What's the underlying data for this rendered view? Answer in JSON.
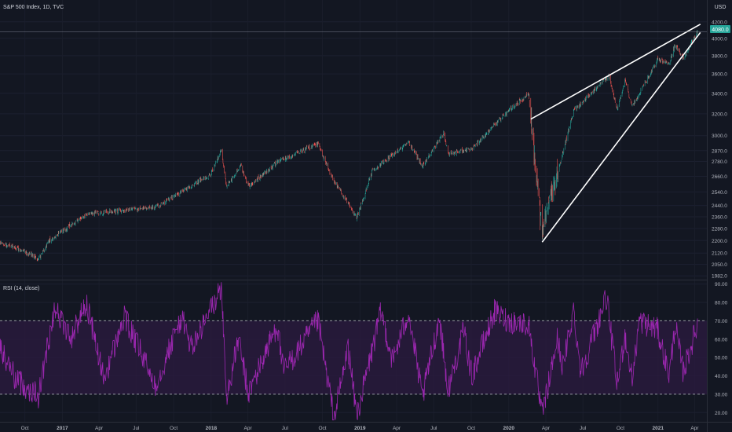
{
  "header": {
    "symbol_title": "S&P 500 Index, 1D, TVC",
    "currency": "USD",
    "current_price": "4080.0"
  },
  "rsi_pane": {
    "label": "RSI (14, close)"
  },
  "colors": {
    "background": "#131722",
    "up_candle": "#26a69a",
    "down_candle": "#ef5350",
    "rsi_line": "#9c27b0",
    "rsi_band_fill": "#2a1a3e",
    "trendline": "#ffffff",
    "price_badge": "#26a69a"
  },
  "chart_data": [
    {
      "type": "candlestick",
      "title": "S&P 500 Index, 1D, TVC",
      "x_ticks": [
        "Oct",
        "2017",
        "Apr",
        "Jul",
        "Oct",
        "2018",
        "Apr",
        "Jul",
        "Oct",
        "2019",
        "Apr",
        "Jul",
        "Oct",
        "2020",
        "Apr",
        "Jul",
        "Oct",
        "2021",
        "Apr"
      ],
      "x_tick_dates": [
        "2016-10-01",
        "2017-01-01",
        "2017-04-01",
        "2017-07-01",
        "2017-10-01",
        "2018-01-01",
        "2018-04-01",
        "2018-07-01",
        "2018-10-01",
        "2019-01-01",
        "2019-04-01",
        "2019-07-01",
        "2019-10-01",
        "2020-01-01",
        "2020-04-01",
        "2020-07-01",
        "2020-10-01",
        "2021-01-01",
        "2021-04-01"
      ],
      "y_scale": "log",
      "y_ticks": [
        "4200.0",
        "4000.0",
        "3800.0",
        "3600.0",
        "3400.0",
        "3200.0",
        "3000.0",
        "2870.0",
        "2780.0",
        "2660.0",
        "2540.0",
        "2440.0",
        "2360.0",
        "2280.0",
        "2200.0",
        "2120.0",
        "2050.0",
        "1982.0"
      ],
      "ylim": [
        1960,
        4480
      ],
      "close_path": [
        [
          "2016-08-01",
          2180
        ],
        [
          "2016-09-15",
          2145
        ],
        [
          "2016-11-04",
          2085
        ],
        [
          "2016-11-30",
          2200
        ],
        [
          "2017-02-28",
          2380
        ],
        [
          "2017-05-15",
          2400
        ],
        [
          "2017-08-21",
          2430
        ],
        [
          "2017-12-31",
          2680
        ],
        [
          "2018-01-26",
          2870
        ],
        [
          "2018-02-08",
          2580
        ],
        [
          "2018-03-15",
          2750
        ],
        [
          "2018-04-02",
          2580
        ],
        [
          "2018-06-15",
          2780
        ],
        [
          "2018-09-20",
          2930
        ],
        [
          "2018-10-25",
          2650
        ],
        [
          "2018-12-24",
          2350
        ],
        [
          "2019-01-31",
          2700
        ],
        [
          "2019-04-30",
          2945
        ],
        [
          "2019-06-03",
          2745
        ],
        [
          "2019-07-26",
          3025
        ],
        [
          "2019-08-05",
          2845
        ],
        [
          "2019-10-02",
          2885
        ],
        [
          "2019-12-31",
          3230
        ],
        [
          "2020-02-19",
          3390
        ],
        [
          "2020-03-23",
          2240
        ],
        [
          "2020-06-08",
          3230
        ],
        [
          "2020-09-02",
          3580
        ],
        [
          "2020-09-23",
          3240
        ],
        [
          "2020-10-12",
          3530
        ],
        [
          "2020-10-30",
          3270
        ],
        [
          "2020-12-31",
          3755
        ],
        [
          "2021-01-29",
          3715
        ],
        [
          "2021-02-12",
          3935
        ],
        [
          "2021-03-04",
          3770
        ],
        [
          "2021-04-08",
          4080
        ]
      ],
      "annotations": {
        "wedge_upper": [
          [
            "2020-02-24",
            3150
          ],
          [
            "2021-04-15",
            4170
          ]
        ],
        "wedge_lower": [
          [
            "2020-03-23",
            2190
          ],
          [
            "2021-04-15",
            4070
          ]
        ],
        "price_line": 4080
      }
    },
    {
      "type": "line",
      "title": "RSI (14, close)",
      "y_ticks": [
        "90.00",
        "80.00",
        "70.00",
        "60.00",
        "50.00",
        "40.00",
        "30.00",
        "20.00"
      ],
      "ylim": [
        15,
        92
      ],
      "bands": [
        30,
        70
      ],
      "x_ticks": [
        "Oct",
        "2017",
        "Apr",
        "Jul",
        "Oct",
        "2018",
        "Apr",
        "Jul",
        "Oct",
        "2019",
        "Apr",
        "Jul",
        "Oct",
        "2020",
        "Apr",
        "Jul",
        "Oct",
        "2021",
        "Apr"
      ],
      "anchors": [
        [
          "2016-08-01",
          55
        ],
        [
          "2016-09-10",
          38
        ],
        [
          "2016-11-04",
          29
        ],
        [
          "2016-12-13",
          78
        ],
        [
          "2017-01-20",
          60
        ],
        [
          "2017-03-01",
          80
        ],
        [
          "2017-04-13",
          38
        ],
        [
          "2017-06-02",
          72
        ],
        [
          "2017-08-18",
          35
        ],
        [
          "2017-10-20",
          72
        ],
        [
          "2017-11-15",
          55
        ],
        [
          "2018-01-26",
          88
        ],
        [
          "2018-02-08",
          28
        ],
        [
          "2018-03-09",
          60
        ],
        [
          "2018-04-02",
          30
        ],
        [
          "2018-06-12",
          68
        ],
        [
          "2018-06-27",
          42
        ],
        [
          "2018-09-20",
          70
        ],
        [
          "2018-10-29",
          17
        ],
        [
          "2018-12-03",
          55
        ],
        [
          "2018-12-24",
          18
        ],
        [
          "2019-02-22",
          75
        ],
        [
          "2019-03-22",
          48
        ],
        [
          "2019-04-30",
          75
        ],
        [
          "2019-06-03",
          28
        ],
        [
          "2019-07-15",
          72
        ],
        [
          "2019-08-05",
          32
        ],
        [
          "2019-09-13",
          65
        ],
        [
          "2019-10-02",
          40
        ],
        [
          "2019-11-27",
          75
        ],
        [
          "2019-12-31",
          70
        ],
        [
          "2020-02-19",
          68
        ],
        [
          "2020-03-23",
          18
        ],
        [
          "2020-04-29",
          60
        ],
        [
          "2020-05-13",
          45
        ],
        [
          "2020-06-08",
          76
        ],
        [
          "2020-06-26",
          42
        ],
        [
          "2020-08-28",
          83
        ],
        [
          "2020-09-23",
          35
        ],
        [
          "2020-10-12",
          62
        ],
        [
          "2020-10-30",
          38
        ],
        [
          "2020-11-16",
          70
        ],
        [
          "2020-12-31",
          65
        ],
        [
          "2021-01-29",
          40
        ],
        [
          "2021-02-12",
          68
        ],
        [
          "2021-03-04",
          42
        ],
        [
          "2021-04-08",
          68
        ]
      ]
    }
  ]
}
